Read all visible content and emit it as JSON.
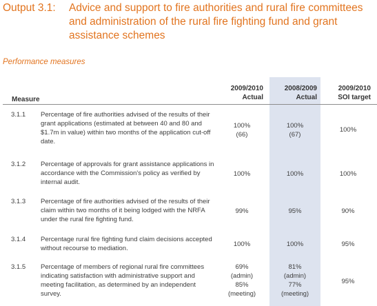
{
  "title": {
    "number": "Output 3.1:",
    "text": "Advice and support to fire authorities and rural fire committees and administration of the rural fire fighting fund and grant assistance schemes"
  },
  "subheading": "Performance measures",
  "columns": {
    "measure": "Measure",
    "col1": [
      "2009/2010",
      "Actual"
    ],
    "col2": [
      "2008/2009",
      "Actual"
    ],
    "col3": [
      "2009/2010",
      "SOI target"
    ]
  },
  "rows": [
    {
      "id": "3.1.1",
      "description": "Percentage of fire authorities advised of the results of their grant applications (estimated at between 40 and 80 and $1.7m in value) within two months of the application cut-off date.",
      "actual_2009_2010": [
        "100%",
        "(66)"
      ],
      "actual_2008_2009": [
        "100%",
        "(67)"
      ],
      "soi_target": "100%"
    },
    {
      "id": "3.1.2",
      "description": "Percentage of approvals for grant assistance applications in accordance with the Commission's policy as verified by internal audit.",
      "actual_2009_2010": [
        "100%"
      ],
      "actual_2008_2009": [
        "100%"
      ],
      "soi_target": "100%"
    },
    {
      "id": "3.1.3",
      "description": "Percentage of fire authorities advised of the results of their claim within two months of it being lodged with the NRFA under the rural fire fighting fund.",
      "actual_2009_2010": [
        "99%"
      ],
      "actual_2008_2009": [
        "95%"
      ],
      "soi_target": "90%"
    },
    {
      "id": "3.1.4",
      "description": "Percentage rural fire fighting fund claim decisions accepted without recourse to mediation.",
      "actual_2009_2010": [
        "100%"
      ],
      "actual_2008_2009": [
        "100%"
      ],
      "soi_target": "95%"
    },
    {
      "id": "3.1.5",
      "description": "Percentage of members of regional rural fire committees indicating satisfaction with administrative support and meeting facilitation, as determined by an independent survey.",
      "actual_2009_2010": [
        "69%",
        "(admin)",
        "85%",
        "(meeting)"
      ],
      "actual_2008_2009": [
        "81%",
        "(admin)",
        "77%",
        "(meeting)"
      ],
      "soi_target": "95%"
    }
  ]
}
